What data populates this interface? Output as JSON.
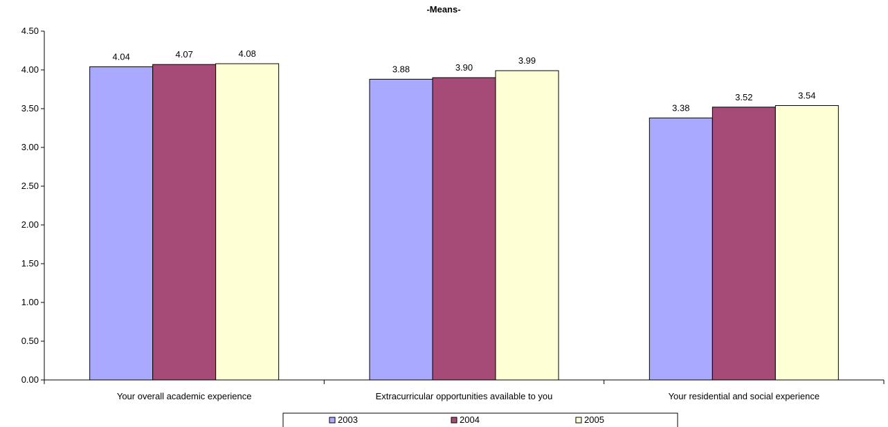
{
  "chart_data": {
    "type": "bar",
    "title": "-Means-",
    "categories": [
      "Your overall academic experience",
      "Extracurricular opportunities available to you",
      "Your residential and social experience"
    ],
    "series": [
      {
        "name": "2003",
        "color": "#a9a9ff",
        "values": [
          4.04,
          3.88,
          3.38
        ],
        "labels": [
          "4.04",
          "3.88",
          "3.38"
        ]
      },
      {
        "name": "2004",
        "color": "#a64a78",
        "values": [
          4.07,
          3.9,
          3.52
        ],
        "labels": [
          "4.07",
          "3.90",
          "3.52"
        ]
      },
      {
        "name": "2005",
        "color": "#ffffd6",
        "values": [
          4.08,
          3.99,
          3.54
        ],
        "labels": [
          "4.08",
          "3.99",
          "3.54"
        ]
      }
    ],
    "ylim": [
      0,
      4.5
    ],
    "yticks": [
      "0.00",
      "0.50",
      "1.00",
      "1.50",
      "2.00",
      "2.50",
      "3.00",
      "3.50",
      "4.00",
      "4.50"
    ],
    "grid": false,
    "legend_position": "bottom"
  }
}
